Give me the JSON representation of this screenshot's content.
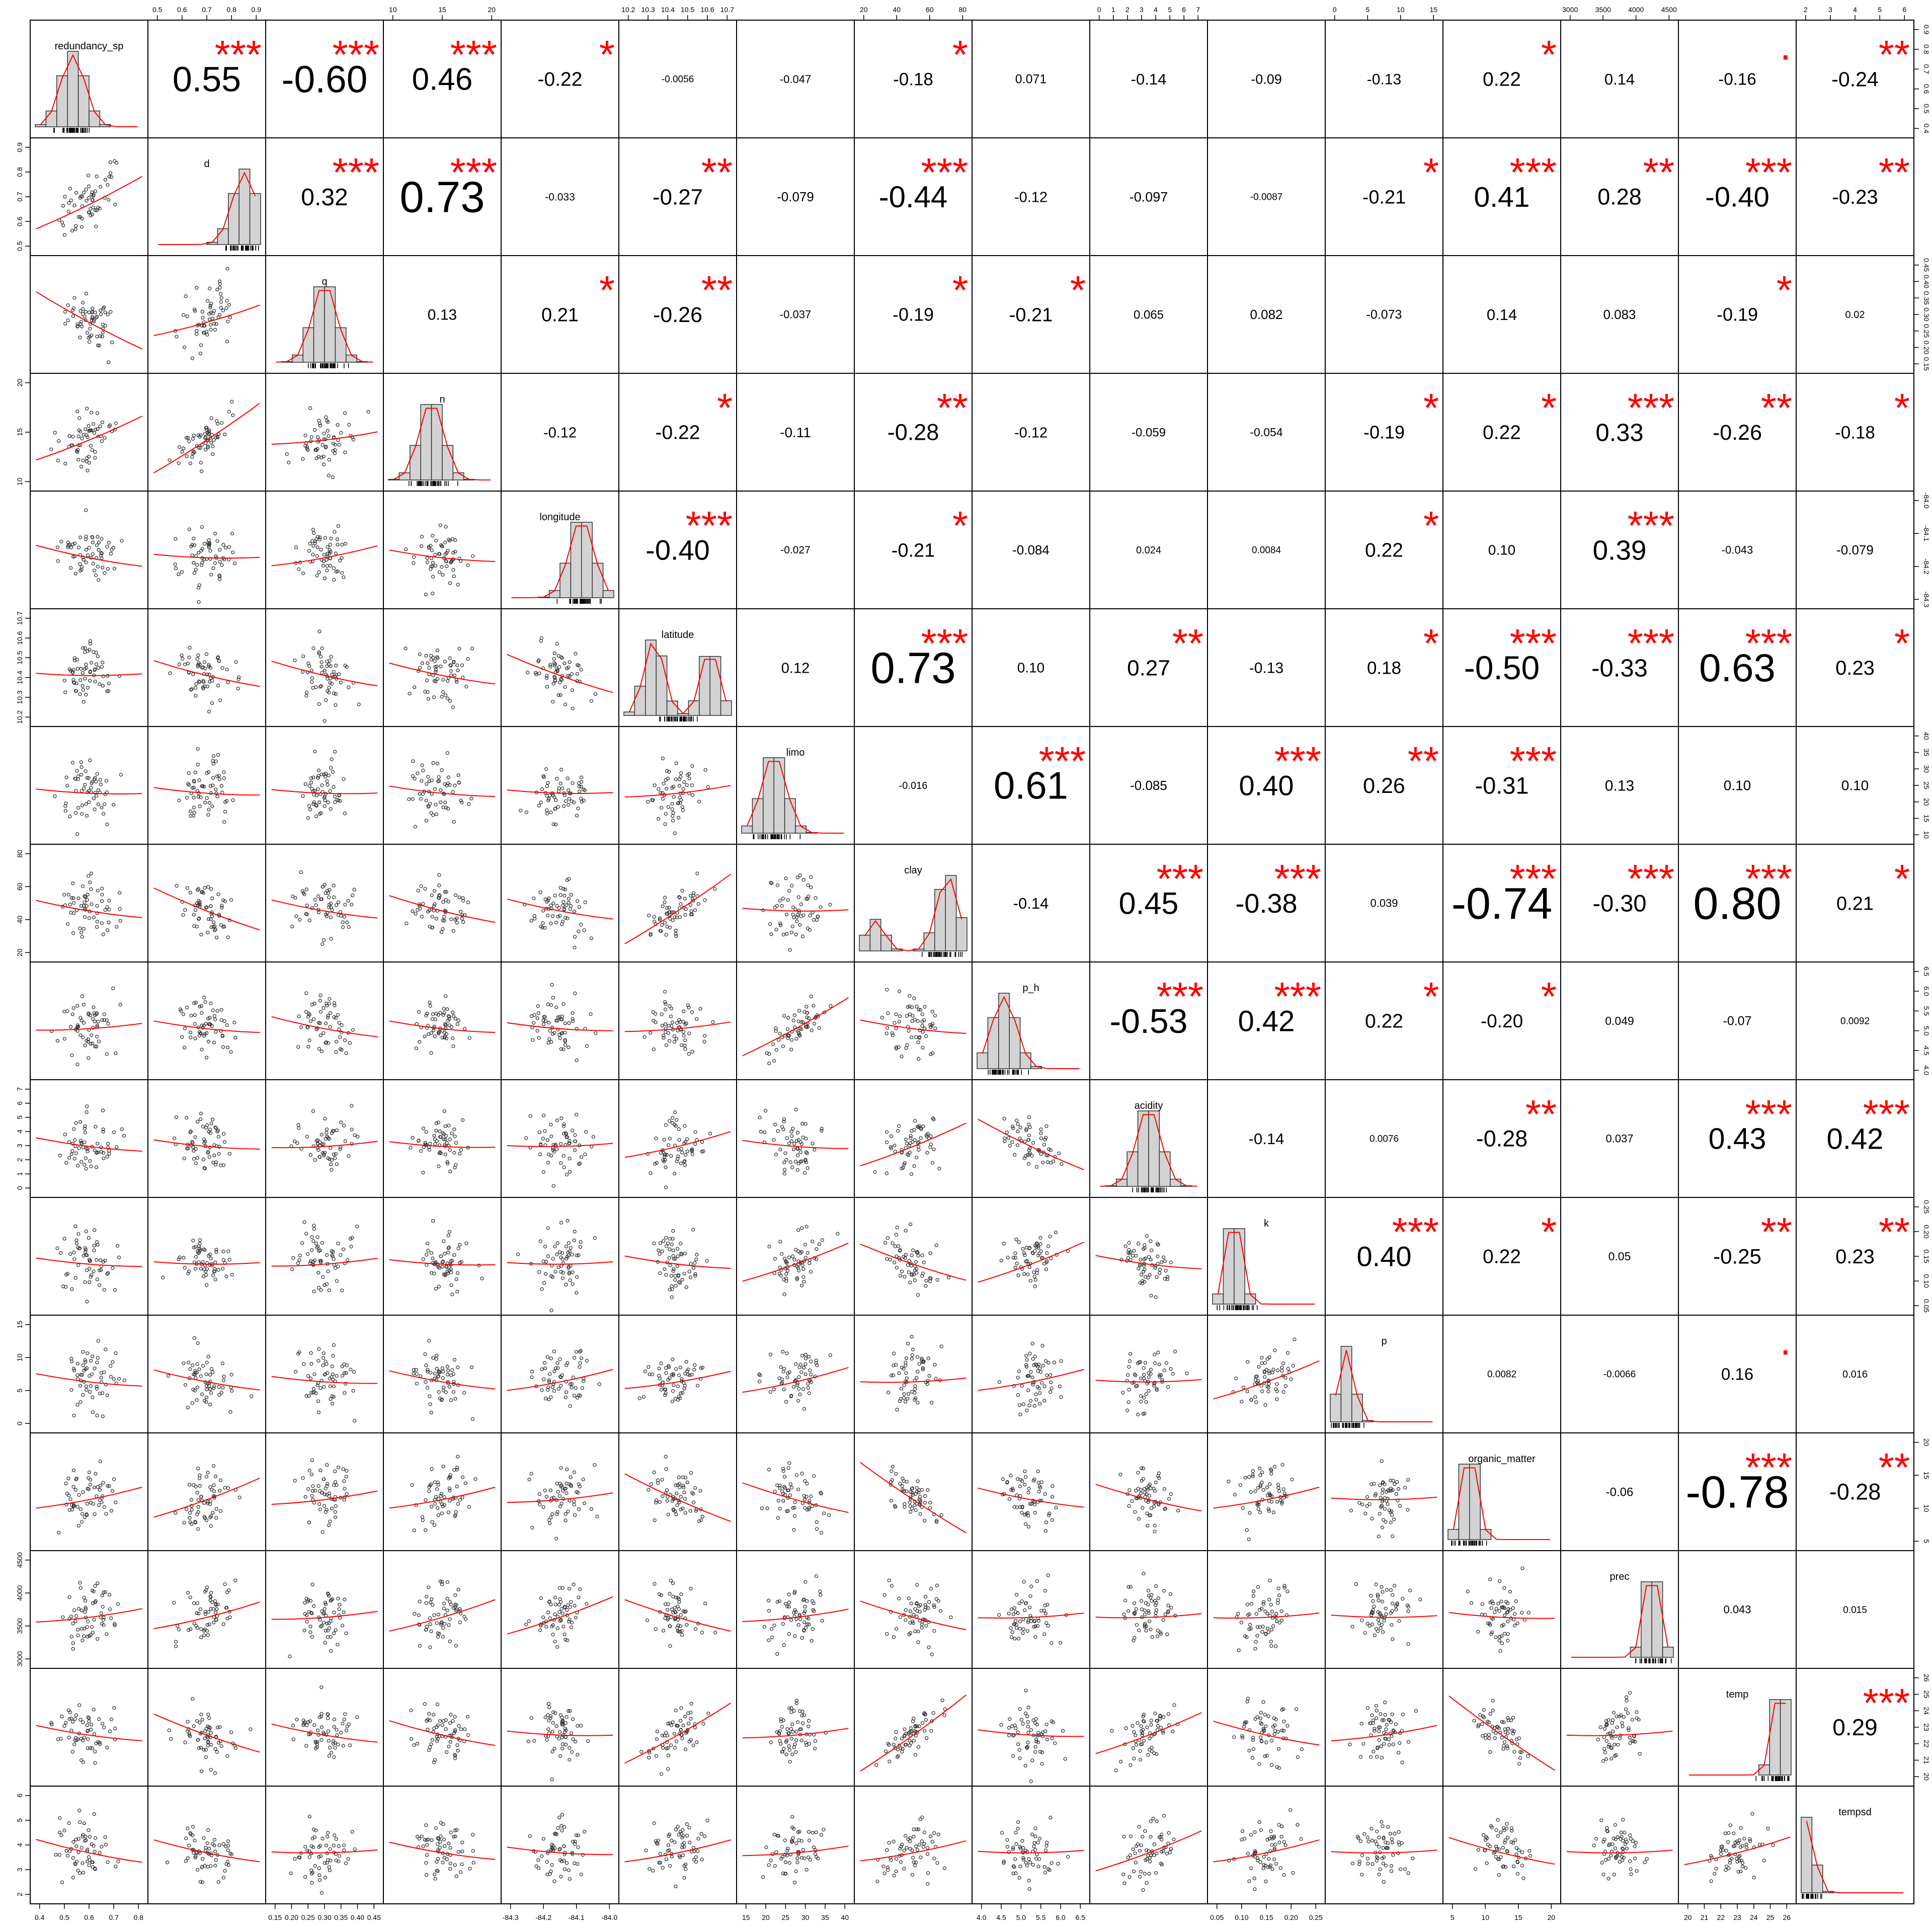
{
  "chart_data": {
    "type": "scatter",
    "variables": [
      "redundancy_sp",
      "d",
      "q",
      "n",
      "longitude",
      "latitude",
      "limo",
      "clay",
      "p_h",
      "acidity",
      "k",
      "p",
      "organic_matter",
      "prec",
      "temp",
      "tempsd"
    ],
    "correlations": [
      [
        "0.55",
        "-0.60",
        "0.46",
        "-0.22",
        "-0.0056",
        "-0.047",
        "-0.18",
        "0.071",
        "-0.14",
        "-0.09",
        "-0.13",
        "0.22",
        "0.14",
        "-0.16",
        "-0.24"
      ],
      [
        "0.32",
        "0.73",
        "-0.033",
        "-0.27",
        "-0.079",
        "-0.44",
        "-0.12",
        "-0.097",
        "-0.0087",
        "-0.21",
        "0.41",
        "0.28",
        "-0.40",
        "-0.23"
      ],
      [
        "0.13",
        "0.21",
        "-0.26",
        "-0.037",
        "-0.19",
        "-0.21",
        "0.065",
        "0.082",
        "-0.073",
        "0.14",
        "0.083",
        "-0.19",
        "0.02"
      ],
      [
        "-0.12",
        "-0.22",
        "-0.11",
        "-0.28",
        "-0.12",
        "-0.059",
        "-0.054",
        "-0.19",
        "0.22",
        "0.33",
        "-0.26",
        "-0.18"
      ],
      [
        "-0.40",
        "-0.027",
        "-0.21",
        "-0.084",
        "0.024",
        "0.0084",
        "0.22",
        "0.10",
        "0.39",
        "-0.043",
        "-0.079"
      ],
      [
        "0.12",
        "0.73",
        "0.10",
        "0.27",
        "-0.13",
        "0.18",
        "-0.50",
        "-0.33",
        "0.63",
        "0.23"
      ],
      [
        "-0.016",
        "0.61",
        "-0.085",
        "0.40",
        "0.26",
        "-0.31",
        "0.13",
        "0.10",
        "0.10"
      ],
      [
        "-0.14",
        "0.45",
        "-0.38",
        "0.039",
        "-0.74",
        "-0.30",
        "0.80",
        "0.21"
      ],
      [
        "-0.53",
        "0.42",
        "0.22",
        "-0.20",
        "0.049",
        "-0.07",
        "0.0092"
      ],
      [
        "-0.14",
        "0.0076",
        "-0.28",
        "0.037",
        "0.43",
        "0.42"
      ],
      [
        "0.40",
        "0.22",
        "0.05",
        "-0.25",
        "0.23"
      ],
      [
        "0.0082",
        "-0.0066",
        "0.16",
        "0.016"
      ],
      [
        "-0.06",
        "-0.78",
        "-0.28"
      ],
      [
        "0.043",
        "0.015"
      ],
      [
        "0.29"
      ]
    ],
    "stars": [
      [
        "***",
        "***",
        "***",
        "*",
        "",
        "",
        "*",
        "",
        "",
        "",
        "",
        "*",
        "",
        "·",
        "**"
      ],
      [
        "***",
        "***",
        "",
        "**",
        "",
        "***",
        "",
        "",
        "",
        "*",
        "***",
        "**",
        "***",
        "**"
      ],
      [
        "",
        "*",
        "**",
        "",
        "*",
        "*",
        "",
        "",
        "",
        "",
        "",
        "*",
        ""
      ],
      [
        "",
        "*",
        "",
        "**",
        "",
        "",
        "",
        "*",
        "*",
        "***",
        "**",
        "*"
      ],
      [
        "***",
        "",
        "*",
        "",
        "",
        "",
        "*",
        "",
        "***",
        "",
        ""
      ],
      [
        "",
        "***",
        "",
        "**",
        "",
        "*",
        "***",
        "***",
        "***",
        "*"
      ],
      [
        "",
        "***",
        "",
        "***",
        "**",
        "***",
        "",
        "",
        ""
      ],
      [
        "",
        "***",
        "***",
        "",
        "***",
        "***",
        "***",
        "*"
      ],
      [
        "***",
        "***",
        "*",
        "*",
        "",
        "",
        ""
      ],
      [
        "",
        "",
        "**",
        "",
        "***",
        "***"
      ],
      [
        "***",
        "*",
        "",
        "**",
        "**"
      ],
      [
        "",
        "",
        "·",
        ""
      ],
      [
        "",
        "***",
        "**"
      ],
      [
        "",
        ""
      ],
      [
        "***"
      ]
    ],
    "axes": {
      "top": [
        {
          "col": 1,
          "ticks": [
            "0.5",
            "0.6",
            "0.7",
            "0.8",
            "0.9"
          ]
        },
        {
          "col": 3,
          "ticks": [
            "10",
            "15",
            "20"
          ]
        },
        {
          "col": 5,
          "ticks": [
            "10.2",
            "10.3",
            "10.4",
            "10.5",
            "10.6",
            "10.7"
          ]
        },
        {
          "col": 7,
          "ticks": [
            "20",
            "40",
            "60",
            "80"
          ]
        },
        {
          "col": 9,
          "ticks": [
            "0",
            "1",
            "2",
            "3",
            "4",
            "5",
            "6",
            "7"
          ]
        },
        {
          "col": 11,
          "ticks": [
            "0",
            "5",
            "10",
            "15"
          ]
        },
        {
          "col": 13,
          "ticks": [
            "3000",
            "3500",
            "4000",
            "4500"
          ]
        },
        {
          "col": 15,
          "ticks": [
            "2",
            "3",
            "4",
            "5",
            "6"
          ]
        }
      ],
      "right": [
        {
          "row": 0,
          "ticks": [
            "0.4",
            "0.5",
            "0.6",
            "0.7",
            "0.8",
            "0.9"
          ]
        },
        {
          "row": 2,
          "ticks": [
            "0.15",
            "0.20",
            "0.25",
            "0.30",
            "0.35",
            "0.40",
            "0.45"
          ]
        },
        {
          "row": 4,
          "ticks": [
            "-84.3",
            "-84.2",
            "-84.1",
            "-84.0"
          ]
        },
        {
          "row": 6,
          "ticks": [
            "10",
            "15",
            "20",
            "25",
            "30",
            "35",
            "40"
          ]
        },
        {
          "row": 8,
          "ticks": [
            "4.0",
            "4.5",
            "5.0",
            "5.5",
            "6.0",
            "6.5"
          ]
        },
        {
          "row": 10,
          "ticks": [
            "0.05",
            "0.10",
            "0.15",
            "0.20",
            "0.25"
          ]
        },
        {
          "row": 12,
          "ticks": [
            "5",
            "10",
            "15",
            "20"
          ]
        },
        {
          "row": 14,
          "ticks": [
            "20",
            "21",
            "22",
            "23",
            "24",
            "25",
            "26"
          ]
        }
      ],
      "bottom": [
        {
          "col": 0,
          "ticks": [
            "0.4",
            "0.5",
            "0.6",
            "0.7",
            "0.8"
          ]
        },
        {
          "col": 2,
          "ticks": [
            "0.15",
            "0.20",
            "0.25",
            "0.30",
            "0.35",
            "0.40",
            "0.45"
          ]
        },
        {
          "col": 4,
          "ticks": [
            "-84.3",
            "-84.2",
            "-84.1",
            "-84.0"
          ]
        },
        {
          "col": 6,
          "ticks": [
            "15",
            "20",
            "25",
            "30",
            "35",
            "40"
          ]
        },
        {
          "col": 8,
          "ticks": [
            "4.0",
            "4.5",
            "5.0",
            "5.5",
            "6.0",
            "6.5"
          ]
        },
        {
          "col": 10,
          "ticks": [
            "0.05",
            "0.10",
            "0.15",
            "0.20",
            "0.25"
          ]
        },
        {
          "col": 12,
          "ticks": [
            "5",
            "10",
            "15",
            "20"
          ]
        },
        {
          "col": 14,
          "ticks": [
            "20",
            "21",
            "22",
            "23",
            "24",
            "25",
            "26"
          ]
        }
      ],
      "left": [
        {
          "row": 1,
          "ticks": [
            "0.5",
            "0.6",
            "0.7",
            "0.8",
            "0.9"
          ]
        },
        {
          "row": 3,
          "ticks": [
            "10",
            "15",
            "20"
          ]
        },
        {
          "row": 5,
          "ticks": [
            "10.2",
            "10.3",
            "10.4",
            "10.5",
            "10.6",
            "10.7"
          ]
        },
        {
          "row": 7,
          "ticks": [
            "20",
            "40",
            "60",
            "80"
          ]
        },
        {
          "row": 9,
          "ticks": [
            "0",
            "1",
            "2",
            "3",
            "4",
            "5",
            "6",
            "7"
          ]
        },
        {
          "row": 11,
          "ticks": [
            "0",
            "5",
            "10",
            "15"
          ]
        },
        {
          "row": 13,
          "ticks": [
            "3000",
            "3500",
            "4000",
            "4500"
          ]
        },
        {
          "row": 15,
          "ticks": [
            "2",
            "3",
            "4",
            "5",
            "6"
          ]
        }
      ]
    },
    "colors": {
      "stars": "#ff0000",
      "smooth": "#ff0000",
      "hist_fill": "#d3d3d3",
      "points": "#333333",
      "frame": "#000000"
    }
  }
}
